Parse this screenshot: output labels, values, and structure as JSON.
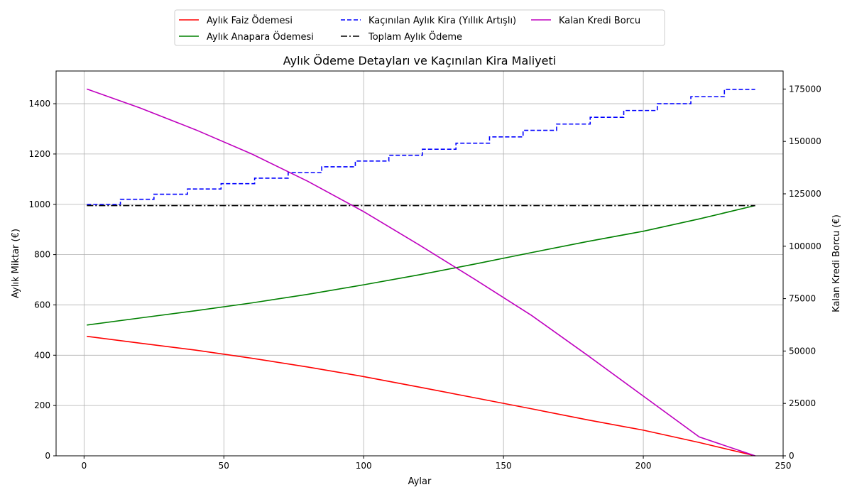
{
  "chart_data": {
    "type": "line",
    "title": "Aylık Ödeme Detayları ve Kaçınılan Kira Maliyeti",
    "xlabel": "Aylar",
    "ylabel": "Aylık Miktar (€)",
    "y2label": "Kalan Kredi Borcu (€)",
    "xlim": [
      -10,
      250
    ],
    "ylim": [
      0,
      1530
    ],
    "y2lim": [
      0,
      183600
    ],
    "xticks": [
      0,
      50,
      100,
      150,
      200,
      250
    ],
    "yticks": [
      0,
      200,
      400,
      600,
      800,
      1000,
      1200,
      1400
    ],
    "y2ticks": [
      0,
      25000,
      50000,
      75000,
      100000,
      125000,
      150000,
      175000
    ],
    "grid": true,
    "legend_placement": "top-center, above plot",
    "series": [
      {
        "name": "Aylık Faiz Ödemesi",
        "axis": "left",
        "style": "solid",
        "color": "#ff0000",
        "x": [
          1,
          20,
          40,
          60,
          80,
          100,
          120,
          140,
          160,
          180,
          200,
          220,
          240
        ],
        "y": [
          475,
          448,
          420,
          388,
          353,
          315,
          273,
          230,
          187,
          143,
          102,
          53,
          0
        ]
      },
      {
        "name": "Aylık Anapara Ödemesi",
        "axis": "left",
        "style": "solid",
        "color": "#008000",
        "x": [
          1,
          20,
          40,
          60,
          80,
          100,
          120,
          140,
          160,
          180,
          200,
          220,
          240
        ],
        "y": [
          520,
          548,
          577,
          608,
          642,
          680,
          720,
          763,
          808,
          852,
          893,
          942,
          995
        ]
      },
      {
        "name": "Kaçınılan Aylık Kira (Yıllık Artışlı)",
        "axis": "left",
        "style": "dashed",
        "color": "#0000ff",
        "stepped": true,
        "x": [
          1,
          13,
          25,
          37,
          49,
          61,
          73,
          85,
          97,
          109,
          121,
          133,
          145,
          157,
          169,
          181,
          193,
          205,
          217,
          229,
          240
        ],
        "y": [
          1000,
          1020,
          1040,
          1061,
          1082,
          1104,
          1126,
          1149,
          1172,
          1195,
          1219,
          1243,
          1268,
          1294,
          1319,
          1346,
          1373,
          1400,
          1428,
          1457,
          1457
        ]
      },
      {
        "name": "Toplam Aylık Ödeme",
        "axis": "left",
        "style": "dashdot",
        "color": "#000000",
        "x": [
          1,
          240
        ],
        "y": [
          995,
          995
        ]
      },
      {
        "name": "Kalan Kredi Borcu",
        "axis": "right",
        "style": "solid",
        "color": "#bf00bf",
        "x": [
          1,
          20,
          40,
          60,
          80,
          100,
          120,
          140,
          160,
          180,
          200,
          220,
          240
        ],
        "y": [
          175000,
          166000,
          155500,
          144000,
          131000,
          116500,
          100500,
          84000,
          67000,
          48000,
          28500,
          9000,
          0
        ]
      }
    ],
    "legend_columns": [
      [
        "Aylık Faiz Ödemesi",
        "Aylık Anapara Ödemesi"
      ],
      [
        "Kaçınılan Aylık Kira (Yıllık Artışlı)",
        "Toplam Aylık Ödeme"
      ],
      [
        "Kalan Kredi Borcu"
      ]
    ]
  }
}
